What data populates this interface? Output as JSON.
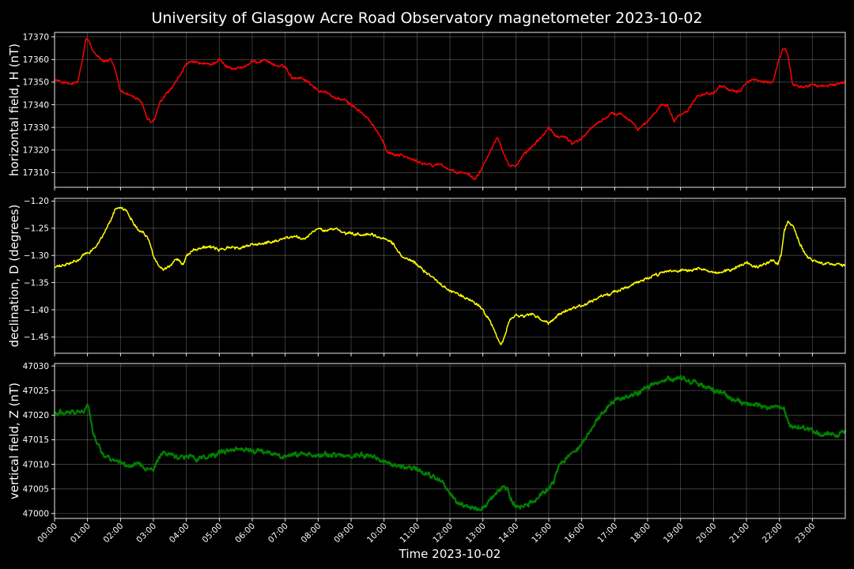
{
  "chart_data": {
    "type": "line",
    "title": "University of Glasgow Acre Road Observatory magnetometer 2023-10-02",
    "xlabel": "Time 2023-10-02",
    "x_ticks": [
      "00:00",
      "01:00",
      "02:00",
      "03:00",
      "04:00",
      "05:00",
      "06:00",
      "07:00",
      "08:00",
      "09:00",
      "10:00",
      "11:00",
      "12:00",
      "13:00",
      "14:00",
      "15:00",
      "16:00",
      "17:00",
      "18:00",
      "19:00",
      "20:00",
      "21:00",
      "22:00",
      "23:00"
    ],
    "xlim_hours": [
      0,
      24
    ],
    "grid": true,
    "panels": [
      {
        "id": "H",
        "ylabel": "horizontal field, H (nT)",
        "color": "#ff0000",
        "ylim": [
          17303.5,
          17372
        ],
        "yticks": [
          17310,
          17320,
          17330,
          17340,
          17350,
          17360,
          17370
        ],
        "ytick_labels": [
          "17310",
          "17320",
          "17330",
          "17340",
          "17350",
          "17360",
          "17370"
        ],
        "noise": 0.6,
        "series": {
          "x": [
            0,
            0.25,
            0.5,
            0.7,
            0.85,
            0.95,
            1.05,
            1.15,
            1.3,
            1.5,
            1.7,
            1.85,
            2.0,
            2.2,
            2.45,
            2.65,
            2.8,
            2.95,
            3.05,
            3.2,
            3.4,
            3.6,
            3.8,
            4.0,
            4.2,
            4.5,
            4.8,
            5.0,
            5.2,
            5.5,
            5.8,
            6.0,
            6.2,
            6.4,
            6.6,
            6.8,
            7.0,
            7.2,
            7.5,
            7.8,
            8.0,
            8.2,
            8.5,
            8.8,
            9.0,
            9.2,
            9.5,
            9.7,
            9.9,
            10.0,
            10.1,
            10.3,
            10.5,
            10.8,
            11.0,
            11.2,
            11.5,
            11.7,
            12.0,
            12.2,
            12.4,
            12.6,
            12.75,
            12.9,
            13.1,
            13.3,
            13.45,
            13.6,
            13.8,
            14.0,
            14.2,
            14.4,
            14.6,
            14.8,
            15.0,
            15.2,
            15.5,
            15.7,
            16.0,
            16.3,
            16.6,
            16.9,
            17.2,
            17.5,
            17.7,
            17.9,
            18.2,
            18.4,
            18.6,
            18.8,
            19.0,
            19.2,
            19.5,
            19.8,
            20.0,
            20.2,
            20.5,
            20.8,
            21.0,
            21.2,
            21.5,
            21.8,
            21.95,
            22.1,
            22.25,
            22.4,
            22.6,
            22.8,
            23.0,
            23.3,
            23.6,
            23.8,
            24.0
          ],
          "y": [
            17351,
            17350,
            17349,
            17350,
            17360,
            17369,
            17368,
            17364,
            17362,
            17359,
            17360,
            17355,
            17346,
            17345,
            17343,
            17341,
            17334,
            17332,
            17334,
            17341,
            17345,
            17348,
            17353,
            17358,
            17359,
            17358,
            17358,
            17360,
            17357,
            17356,
            17357,
            17359,
            17359,
            17360,
            17358,
            17357,
            17357,
            17352,
            17352,
            17349,
            17346,
            17346,
            17343,
            17342,
            17340,
            17338,
            17334,
            17330,
            17326,
            17323,
            17319,
            17318,
            17318,
            17316,
            17315,
            17314,
            17313,
            17314,
            17311,
            17310,
            17310,
            17309,
            17307,
            17310,
            17316,
            17322,
            17326,
            17320,
            17313,
            17313,
            17317,
            17320,
            17323,
            17326,
            17330,
            17326,
            17326,
            17323,
            17325,
            17330,
            17333,
            17336,
            17336,
            17333,
            17329,
            17331,
            17336,
            17340,
            17340,
            17333,
            17336,
            17337,
            17344,
            17345,
            17345,
            17349,
            17346,
            17346,
            17350,
            17351,
            17350,
            17350,
            17358,
            17365,
            17363,
            17349,
            17348,
            17348,
            17349,
            17348,
            17349,
            17349,
            17350
          ]
        }
      },
      {
        "id": "D",
        "ylabel": "declination, D (degrees)",
        "color": "#ffff00",
        "ylim": [
          -1.48,
          -1.195
        ],
        "yticks": [
          -1.45,
          -1.4,
          -1.35,
          -1.3,
          -1.25,
          -1.2
        ],
        "ytick_labels": [
          "−1.45",
          "−1.40",
          "−1.35",
          "−1.30",
          "−1.25",
          "−1.20"
        ],
        "noise": 0.0025,
        "series": {
          "x": [
            0,
            0.3,
            0.5,
            0.75,
            0.9,
            1.1,
            1.3,
            1.5,
            1.7,
            1.85,
            2.0,
            2.1,
            2.2,
            2.35,
            2.5,
            2.7,
            2.85,
            3.0,
            3.15,
            3.3,
            3.5,
            3.65,
            3.8,
            3.9,
            4.0,
            4.2,
            4.5,
            4.8,
            5.0,
            5.3,
            5.6,
            6.0,
            6.3,
            6.6,
            7.0,
            7.3,
            7.6,
            7.9,
            8.0,
            8.2,
            8.5,
            8.8,
            9.0,
            9.3,
            9.6,
            9.9,
            10.1,
            10.3,
            10.5,
            10.8,
            11.0,
            11.2,
            11.5,
            11.8,
            12.0,
            12.3,
            12.6,
            12.9,
            13.1,
            13.3,
            13.45,
            13.55,
            13.65,
            13.8,
            14.0,
            14.2,
            14.5,
            14.8,
            15.0,
            15.3,
            15.6,
            16.0,
            16.3,
            16.6,
            17.0,
            17.3,
            17.6,
            18.0,
            18.3,
            18.6,
            19.0,
            19.3,
            19.6,
            20.0,
            20.3,
            20.6,
            20.8,
            21.0,
            21.2,
            21.5,
            21.8,
            21.95,
            22.05,
            22.15,
            22.25,
            22.4,
            22.6,
            22.8,
            23.0,
            23.3,
            23.6,
            24.0
          ],
          "y": [
            -1.322,
            -1.318,
            -1.314,
            -1.308,
            -1.298,
            -1.292,
            -1.28,
            -1.26,
            -1.235,
            -1.215,
            -1.21,
            -1.215,
            -1.22,
            -1.235,
            -1.25,
            -1.258,
            -1.27,
            -1.3,
            -1.318,
            -1.325,
            -1.32,
            -1.308,
            -1.31,
            -1.318,
            -1.3,
            -1.29,
            -1.285,
            -1.285,
            -1.29,
            -1.285,
            -1.287,
            -1.28,
            -1.278,
            -1.275,
            -1.268,
            -1.265,
            -1.27,
            -1.255,
            -1.25,
            -1.255,
            -1.25,
            -1.26,
            -1.26,
            -1.262,
            -1.262,
            -1.268,
            -1.27,
            -1.28,
            -1.3,
            -1.31,
            -1.316,
            -1.328,
            -1.34,
            -1.358,
            -1.365,
            -1.372,
            -1.382,
            -1.392,
            -1.41,
            -1.43,
            -1.455,
            -1.465,
            -1.452,
            -1.42,
            -1.41,
            -1.412,
            -1.408,
            -1.42,
            -1.425,
            -1.41,
            -1.4,
            -1.392,
            -1.385,
            -1.375,
            -1.368,
            -1.36,
            -1.352,
            -1.342,
            -1.335,
            -1.33,
            -1.328,
            -1.328,
            -1.325,
            -1.332,
            -1.33,
            -1.325,
            -1.32,
            -1.312,
            -1.322,
            -1.318,
            -1.308,
            -1.315,
            -1.3,
            -1.255,
            -1.238,
            -1.245,
            -1.275,
            -1.3,
            -1.31,
            -1.316,
            -1.314,
            -1.318
          ]
        }
      },
      {
        "id": "Z",
        "ylabel": "vertical field, Z (nT)",
        "color": "#008000",
        "ylim": [
          46999,
          47030.5
        ],
        "yticks": [
          47000,
          47005,
          47010,
          47015,
          47020,
          47025,
          47030
        ],
        "ytick_labels": [
          "47000",
          "47005",
          "47010",
          "47015",
          "47020",
          "47025",
          "47030"
        ],
        "noise": 0.45,
        "series": {
          "x": [
            0,
            0.3,
            0.6,
            0.8,
            0.9,
            1.0,
            1.05,
            1.15,
            1.3,
            1.5,
            1.7,
            1.9,
            2.1,
            2.3,
            2.5,
            2.7,
            2.9,
            3.0,
            3.15,
            3.3,
            3.5,
            3.7,
            3.9,
            4.1,
            4.3,
            4.6,
            4.9,
            5.1,
            5.4,
            5.7,
            6.0,
            6.3,
            6.6,
            6.9,
            7.2,
            7.5,
            7.8,
            8.0,
            8.3,
            8.6,
            9.0,
            9.3,
            9.6,
            9.9,
            10.2,
            10.5,
            10.8,
            11.0,
            11.2,
            11.5,
            11.8,
            12.0,
            12.2,
            12.4,
            12.6,
            12.8,
            13.0,
            13.2,
            13.4,
            13.6,
            13.75,
            13.85,
            14.0,
            14.2,
            14.4,
            14.6,
            14.8,
            15.0,
            15.15,
            15.3,
            15.5,
            15.7,
            15.9,
            16.1,
            16.3,
            16.5,
            16.7,
            16.9,
            17.1,
            17.3,
            17.5,
            17.7,
            17.9,
            18.1,
            18.3,
            18.5,
            18.7,
            18.9,
            19.0,
            19.2,
            19.5,
            19.8,
            20.0,
            20.3,
            20.6,
            20.9,
            21.1,
            21.4,
            21.7,
            21.9,
            22.0,
            22.15,
            22.3,
            22.5,
            22.7,
            22.9,
            23.1,
            23.3,
            23.5,
            23.7,
            23.9,
            24.0
          ],
          "y": [
            47020.5,
            47020.6,
            47020.8,
            47020.5,
            47021,
            47022.5,
            47021,
            47017,
            47014,
            47012,
            47011,
            47010.5,
            47010,
            47009.5,
            47010.5,
            47009.3,
            47009,
            47009,
            47011,
            47012.5,
            47012,
            47011.5,
            47011.5,
            47011.8,
            47011,
            47011.5,
            47012,
            47012.5,
            47012.8,
            47013,
            47012.8,
            47012.5,
            47012.3,
            47011.5,
            47012,
            47012.2,
            47012,
            47011.8,
            47012,
            47011.8,
            47011.5,
            47012,
            47011.8,
            47011,
            47010,
            47009.5,
            47009.3,
            47009,
            47008,
            47007.5,
            47006,
            47004,
            47002.5,
            47001.5,
            47001.2,
            47001,
            47001.2,
            47002.5,
            47004,
            47005.5,
            47005,
            47003,
            47001.5,
            47001.5,
            47002,
            47002.5,
            47004,
            47005,
            47006.5,
            47009.5,
            47011,
            47012.5,
            47013.5,
            47015.5,
            47017,
            47019.5,
            47021,
            47022.5,
            47023,
            47023.5,
            47024,
            47024.5,
            47025.5,
            47026,
            47026.5,
            47027,
            47027.3,
            47027.5,
            47027.7,
            47027.2,
            47026.5,
            47025.5,
            47025,
            47024.5,
            47023,
            47022.5,
            47022.2,
            47022,
            47021.5,
            47021.8,
            47021.2,
            47021,
            47018,
            47017.5,
            47017.5,
            47017,
            47016.3,
            47016,
            47016.2,
            47016,
            47016.5,
            47017
          ]
        }
      }
    ]
  }
}
